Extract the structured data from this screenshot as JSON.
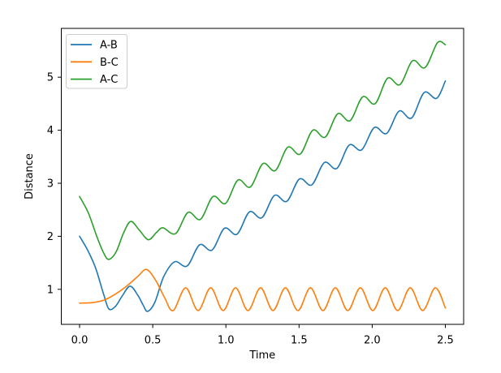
{
  "chart_data": {
    "type": "line",
    "title": "",
    "xlabel": "Time",
    "ylabel": "Distance",
    "xlim": [
      -0.125,
      2.625
    ],
    "ylim": [
      0.34,
      5.92
    ],
    "x_ticks": [
      0.0,
      0.5,
      1.0,
      1.5,
      2.0,
      2.5
    ],
    "x_tick_labels": [
      "0.0",
      "0.5",
      "1.0",
      "1.5",
      "2.0",
      "2.5"
    ],
    "y_ticks": [
      1,
      2,
      3,
      4,
      5
    ],
    "y_tick_labels": [
      "1",
      "2",
      "3",
      "4",
      "5"
    ],
    "grid": false,
    "legend": {
      "position": "upper left",
      "entries": [
        {
          "label": "A-B",
          "color": "#1f77b4"
        },
        {
          "label": "B-C",
          "color": "#ff7f0e"
        },
        {
          "label": "A-C",
          "color": "#2ca02c"
        }
      ]
    },
    "series": [
      {
        "name": "A-B",
        "color": "#1f77b4",
        "points": [
          [
            0.0,
            2.0
          ],
          [
            0.055,
            1.74
          ],
          [
            0.11,
            1.4
          ],
          [
            0.165,
            0.9
          ],
          [
            0.2,
            0.63
          ],
          [
            0.245,
            0.68
          ],
          [
            0.29,
            0.87
          ],
          [
            0.345,
            1.06
          ],
          [
            0.4,
            0.88
          ],
          [
            0.435,
            0.7
          ],
          [
            0.465,
            0.585
          ],
          [
            0.515,
            0.76
          ],
          [
            0.575,
            1.24
          ],
          [
            0.65,
            1.52
          ],
          [
            0.735,
            1.44
          ],
          [
            0.82,
            1.84
          ],
          [
            0.905,
            1.74
          ],
          [
            0.99,
            2.15
          ],
          [
            1.076,
            2.04
          ],
          [
            1.161,
            2.46
          ],
          [
            1.246,
            2.35
          ],
          [
            1.332,
            2.77
          ],
          [
            1.417,
            2.66
          ],
          [
            1.502,
            3.08
          ],
          [
            1.587,
            2.97
          ],
          [
            1.673,
            3.39
          ],
          [
            1.758,
            3.28
          ],
          [
            1.843,
            3.72
          ],
          [
            1.928,
            3.63
          ],
          [
            2.014,
            4.05
          ],
          [
            2.099,
            3.94
          ],
          [
            2.184,
            4.36
          ],
          [
            2.269,
            4.23
          ],
          [
            2.355,
            4.71
          ],
          [
            2.44,
            4.6
          ],
          [
            2.5,
            4.93
          ]
        ]
      },
      {
        "name": "B-C",
        "color": "#ff7f0e",
        "points": [
          [
            0.0,
            0.74
          ],
          [
            0.09,
            0.75
          ],
          [
            0.17,
            0.8
          ],
          [
            0.25,
            0.92
          ],
          [
            0.33,
            1.08
          ],
          [
            0.4,
            1.25
          ],
          [
            0.457,
            1.375
          ],
          [
            0.52,
            1.17
          ],
          [
            0.58,
            0.85
          ],
          [
            0.64,
            0.6
          ],
          [
            0.725,
            1.03
          ],
          [
            0.81,
            0.6
          ],
          [
            0.896,
            1.03
          ],
          [
            0.981,
            0.6
          ],
          [
            1.066,
            1.03
          ],
          [
            1.151,
            0.6
          ],
          [
            1.237,
            1.03
          ],
          [
            1.322,
            0.6
          ],
          [
            1.407,
            1.03
          ],
          [
            1.492,
            0.6
          ],
          [
            1.578,
            1.03
          ],
          [
            1.663,
            0.6
          ],
          [
            1.748,
            1.03
          ],
          [
            1.833,
            0.6
          ],
          [
            1.919,
            1.03
          ],
          [
            2.004,
            0.6
          ],
          [
            2.089,
            1.03
          ],
          [
            2.174,
            0.6
          ],
          [
            2.26,
            1.03
          ],
          [
            2.345,
            0.6
          ],
          [
            2.431,
            1.03
          ],
          [
            2.5,
            0.65
          ]
        ]
      },
      {
        "name": "A-C",
        "color": "#2ca02c",
        "points": [
          [
            0.0,
            2.75
          ],
          [
            0.06,
            2.44
          ],
          [
            0.12,
            1.98
          ],
          [
            0.165,
            1.68
          ],
          [
            0.2,
            1.565
          ],
          [
            0.25,
            1.71
          ],
          [
            0.3,
            2.06
          ],
          [
            0.35,
            2.28
          ],
          [
            0.41,
            2.11
          ],
          [
            0.47,
            1.935
          ],
          [
            0.525,
            2.07
          ],
          [
            0.57,
            2.16
          ],
          [
            0.656,
            2.05
          ],
          [
            0.741,
            2.45
          ],
          [
            0.826,
            2.32
          ],
          [
            0.912,
            2.75
          ],
          [
            0.997,
            2.62
          ],
          [
            1.082,
            3.06
          ],
          [
            1.167,
            2.93
          ],
          [
            1.253,
            3.37
          ],
          [
            1.338,
            3.24
          ],
          [
            1.423,
            3.68
          ],
          [
            1.508,
            3.55
          ],
          [
            1.594,
            4.0
          ],
          [
            1.679,
            3.87
          ],
          [
            1.764,
            4.31
          ],
          [
            1.849,
            4.18
          ],
          [
            1.935,
            4.63
          ],
          [
            2.02,
            4.5
          ],
          [
            2.105,
            4.98
          ],
          [
            2.19,
            4.86
          ],
          [
            2.276,
            5.31
          ],
          [
            2.361,
            5.18
          ],
          [
            2.446,
            5.65
          ],
          [
            2.5,
            5.61
          ]
        ]
      }
    ],
    "colors": {
      "background": "#ffffff",
      "spine": "#000000",
      "tick": "#000000",
      "text": "#000000",
      "legend_border": "#cccccc",
      "legend_fill": "#ffffff"
    }
  }
}
